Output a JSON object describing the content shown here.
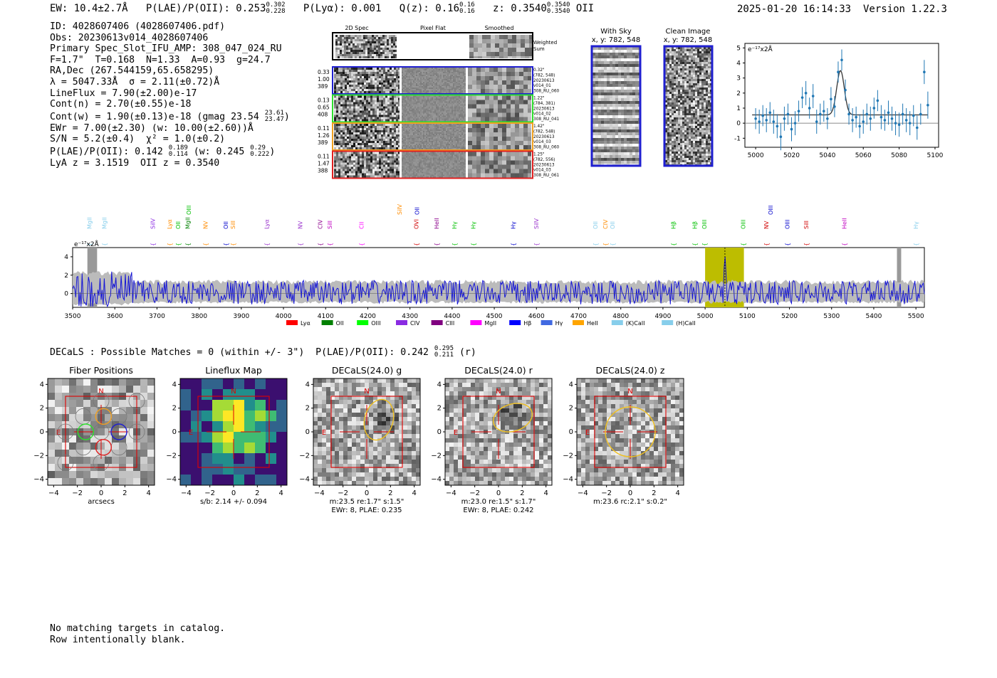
{
  "header": {
    "ew": "EW: 10.4±2.7Å",
    "plae_label": "P(LAE)/P(OII): 0.253",
    "plae_hi": "0.302",
    "plae_lo": "0.228",
    "plya": "P(Lyα): 0.001",
    "qz_label": "Q(z): 0.16",
    "qz_hi": "0.16",
    "qz_lo": "0.16",
    "z_label": "z: 0.3540",
    "z_hi": "0.3540",
    "z_lo": "0.3540",
    "z_line": "OII",
    "timestamp": "2025-01-20 16:14:33",
    "version": "Version 1.22.3"
  },
  "info": {
    "id": "ID: 4028607406 (4028607406.pdf)",
    "obs": "Obs: 20230613v014_4028607406",
    "primary": "Primary Spec_Slot_IFU_AMP: 308_047_024_RU",
    "fwhm": "F=1.7\"  T=0.168  N=1.33  A=0.93  g=24.7",
    "radec": "RA,Dec (267.544159,65.658295)",
    "lambda": "λ = 5047.33Å  σ = 2.11(±0.72)Å",
    "lineflux": "LineFlux = 7.90(±2.00)e-17",
    "contn": "Cont(n) = 2.70(±0.55)e-18",
    "contw": "Cont(w) = 1.90(±0.13)e-18 (gmag 23.54",
    "contw_hi": "23.61",
    "contw_lo": "23.47",
    "ewr": "EWr = 7.00(±2.30) (w: 10.00(±2.60))Å",
    "sn": "S/N = 5.2(±0.4)  χ² = 1.0(±0.2)",
    "plae2": "P(LAE)/P(OII): 0.142",
    "plae2_hi": "0.189",
    "plae2_lo": "0.114",
    "plae2_w": "(w: 0.245",
    "plae2_w_hi": "0.29",
    "plae2_w_lo": "0.222",
    "lyaz": "LyA z = 3.1519  OII z = 0.3540"
  },
  "cutouts": {
    "col_2d": "2D Spec",
    "col_flat": "Pixel Flat",
    "col_smooth": "Smoothed",
    "weighted": "Weighted Sum",
    "rows": [
      {
        "w1": "0.33",
        "w2": "1.00",
        "w3": "389",
        "d1": "0.32\"",
        "d2": "(782, 548)",
        "d3": "20230613",
        "d4": "v014_01",
        "d5": "308_RU_060",
        "color": "#1f1fd0"
      },
      {
        "w1": "0.13",
        "w2": "0.65",
        "w3": "408",
        "d1": "1.22\"",
        "d2": "(784, 381)",
        "d3": "20230613",
        "d4": "v014_02",
        "d5": "308_RU_041",
        "color": "#2ee02e"
      },
      {
        "w1": "0.11",
        "w2": "1.26",
        "w3": "389",
        "d1": "1.42\"",
        "d2": "(782, 548)",
        "d3": "20230613",
        "d4": "v014_03",
        "d5": "308_RU_060",
        "color": "#f0a020"
      },
      {
        "w1": "0.11",
        "w2": "1.47",
        "w3": "388",
        "d1": "1.25\"",
        "d2": "(782, 556)",
        "d3": "20230613",
        "d4": "v014_03",
        "d5": "308_RU_061",
        "color": "#e02020"
      }
    ],
    "with_sky": "With Sky",
    "with_sky_xy": "x, y: 782, 548",
    "clean": "Clean Image",
    "clean_xy": "x, y: 782, 548"
  },
  "zoom_chart": {
    "units": "e⁻¹⁷x2Å",
    "x_ticks": [
      "5000",
      "5020",
      "5040",
      "5060",
      "5080",
      "5100"
    ],
    "y_ticks": [
      "5",
      "4",
      "3",
      "2",
      "1",
      "0",
      "-1"
    ]
  },
  "chart_data": [
    {
      "type": "scatter",
      "title": "",
      "xlabel": "",
      "ylabel": "e-17 x2Å",
      "xlim": [
        4994,
        5102
      ],
      "ylim": [
        -1.6,
        5.3
      ],
      "x": [
        5000,
        5002,
        5004,
        5006,
        5008,
        5010,
        5012,
        5014,
        5016,
        5018,
        5020,
        5022,
        5024,
        5026,
        5028,
        5030,
        5032,
        5034,
        5036,
        5038,
        5040,
        5042,
        5044,
        5046,
        5048,
        5050,
        5052,
        5054,
        5056,
        5058,
        5060,
        5062,
        5064,
        5066,
        5068,
        5070,
        5072,
        5074,
        5076,
        5078,
        5080,
        5082,
        5084,
        5086,
        5088,
        5090,
        5092,
        5094,
        5096
      ],
      "y": [
        0.3,
        0.1,
        0.5,
        0.2,
        0.7,
        0.1,
        -0.2,
        -0.9,
        0.3,
        0.6,
        -0.4,
        0.0,
        0.8,
        1.7,
        2.0,
        1.0,
        1.8,
        0.1,
        0.6,
        0.8,
        0.3,
        1.6,
        1.1,
        3.4,
        4.2,
        2.2,
        0.6,
        0.2,
        0.4,
        -0.2,
        0.1,
        0.6,
        0.3,
        1.0,
        1.5,
        0.4,
        0.2,
        0.7,
        0.3,
        0.0,
        -0.1,
        0.6,
        0.2,
        0.0,
        0.5,
        -0.3,
        0.6,
        3.4,
        1.2
      ],
      "err": [
        0.7,
        0.8,
        0.7,
        0.8,
        0.7,
        0.8,
        0.8,
        0.9,
        0.8,
        0.7,
        0.8,
        0.8,
        0.7,
        0.7,
        0.8,
        0.7,
        0.8,
        0.8,
        0.7,
        0.7,
        0.7,
        0.8,
        0.7,
        0.7,
        0.7,
        0.7,
        0.7,
        0.8,
        0.7,
        0.8,
        0.8,
        0.7,
        0.8,
        0.7,
        0.7,
        0.8,
        0.7,
        0.8,
        0.8,
        0.8,
        0.8,
        0.7,
        0.8,
        0.8,
        0.7,
        0.8,
        0.7,
        0.8,
        0.9
      ],
      "fit": {
        "continuum": 0.55,
        "amplitude": 2.95,
        "center": 5047.3,
        "sigma": 2.11
      }
    },
    {
      "type": "line",
      "title": "",
      "xlabel": "",
      "ylabel": "e-17 x2Å",
      "xlim": [
        3500,
        5520
      ],
      "ylim": [
        -1.5,
        5.0
      ],
      "x_ticks": [
        3500,
        3600,
        3700,
        3800,
        3900,
        4000,
        4100,
        4200,
        4300,
        4400,
        4500,
        4600,
        4700,
        4800,
        4900,
        5000,
        5100,
        5200,
        5300,
        5400,
        5500
      ],
      "y_ticks": [
        0,
        2,
        4
      ],
      "highlight_band": [
        5000,
        5092
      ],
      "emission_center": 5047,
      "line_labels": [
        {
          "w": 3545,
          "t": "MgII",
          "c": "#87ceeb"
        },
        {
          "w": 3580,
          "t": "MgII",
          "c": "#87ceeb"
        },
        {
          "w": 3695,
          "t": "SiIV",
          "c": "#8a2be2"
        },
        {
          "w": 3735,
          "t": "Lyα",
          "c": "#ff8c00"
        },
        {
          "w": 3755,
          "t": "OII",
          "c": "#00c000"
        },
        {
          "w": 3778,
          "t": "MgII",
          "c": "#008000"
        },
        {
          "w": 3820,
          "t": "NV",
          "c": "#ff8c00"
        },
        {
          "w": 3868,
          "t": "OII",
          "c": "#0000cd"
        },
        {
          "w": 3885,
          "t": "SiII",
          "c": "#ff8c00"
        },
        {
          "w": 3965,
          "t": "Lyα",
          "c": "#9932cc"
        },
        {
          "w": 4045,
          "t": "NV",
          "c": "#9932cc"
        },
        {
          "w": 4092,
          "t": "CIV",
          "c": "#8b008b"
        },
        {
          "w": 4115,
          "t": "SiII",
          "c": "#c000c0"
        },
        {
          "w": 4190,
          "t": "CII",
          "c": "#ff00ff"
        },
        {
          "w": 4320,
          "t": "OVI",
          "c": "#d00000"
        },
        {
          "w": 4368,
          "t": "HeII",
          "c": "#8b008b"
        },
        {
          "w": 4410,
          "t": "Hγ",
          "c": "#00c000"
        },
        {
          "w": 4455,
          "t": "Hγ",
          "c": "#00c000"
        },
        {
          "w": 4550,
          "t": "Hγ",
          "c": "#0000cd"
        },
        {
          "w": 4605,
          "t": "SiIV",
          "c": "#9932cc"
        },
        {
          "w": 4745,
          "t": "OII",
          "c": "#87ceeb"
        },
        {
          "w": 4768,
          "t": "CIV",
          "c": "#ff8c00"
        },
        {
          "w": 4785,
          "t": "OII",
          "c": "#87ceeb"
        },
        {
          "w": 4930,
          "t": "Hβ",
          "c": "#00c000"
        },
        {
          "w": 4980,
          "t": "Hβ",
          "c": "#00c000"
        },
        {
          "w": 5003,
          "t": "OIII",
          "c": "#00c000"
        },
        {
          "w": 5095,
          "t": "OIII",
          "c": "#00c000"
        },
        {
          "w": 5150,
          "t": "NV",
          "c": "#d00000"
        },
        {
          "w": 5200,
          "t": "OIII",
          "c": "#0000cd"
        },
        {
          "w": 5245,
          "t": "SiII",
          "c": "#d00000"
        },
        {
          "w": 5335,
          "t": "HeII",
          "c": "#c000c0"
        },
        {
          "w": 5505,
          "t": "Hγ",
          "c": "#87ceeb"
        }
      ],
      "upper_labels": [
        {
          "w": 3780,
          "t": "OIII",
          "c": "#00c000"
        },
        {
          "w": 4280,
          "t": "SiIV",
          "c": "#ff8c00"
        },
        {
          "w": 4322,
          "t": "OII",
          "c": "#0000cd"
        },
        {
          "w": 5160,
          "t": "OIII",
          "c": "#0000cd"
        }
      ]
    }
  ],
  "legend": [
    {
      "label": "Lyα",
      "color": "#ff0000"
    },
    {
      "label": "OII",
      "color": "#008000"
    },
    {
      "label": "OIII",
      "color": "#00ff00"
    },
    {
      "label": "CIV",
      "color": "#8a2be2"
    },
    {
      "label": "CIII",
      "color": "#800080"
    },
    {
      "label": "MgII",
      "color": "#ff00ff"
    },
    {
      "label": "Hβ",
      "color": "#0000ff"
    },
    {
      "label": "Hγ",
      "color": "#4169e1"
    },
    {
      "label": "HeII",
      "color": "#ffa500"
    },
    {
      "label": "(K)CaII",
      "color": "#87ceeb"
    },
    {
      "label": "(H)CaII",
      "color": "#87ceeb"
    }
  ],
  "decals": {
    "line": "DECaLS : Possible Matches = 0 (within +/- 3\")  P(LAE)/P(OII): 0.242",
    "hi": "0.295",
    "lo": "0.211",
    "band": "(r)"
  },
  "panels": [
    {
      "title": "Fiber Positions",
      "cap1": "arcsecs",
      "cap2": ""
    },
    {
      "title": "Lineflux Map",
      "cap1": "s/b: 2.14 +/- 0.094",
      "cap2": ""
    },
    {
      "title": "DECaLS(24.0) g",
      "cap1": "m:23.5  re:1.7\"  s:1.5\"",
      "cap2": "EWr: 8, PLAE: 0.235"
    },
    {
      "title": "DECaLS(24.0) r",
      "cap1": "m:23.0  re:1.5\"  s:1.7\"",
      "cap2": "EWr: 8, PLAE: 0.242"
    },
    {
      "title": "DECaLS(24.0) z",
      "cap1": "m:23.6 rc:2.1\"  s:0.2\"",
      "cap2": ""
    }
  ],
  "panel_ticks": {
    "x": [
      "−4",
      "−2",
      "0",
      "2",
      "4"
    ],
    "y": [
      "4",
      "2",
      "0",
      "−2",
      "−4"
    ]
  },
  "compass": {
    "n": "N",
    "e": "E"
  },
  "footer": {
    "line1": "No matching targets in catalog.",
    "line2": "Row intentionally blank."
  }
}
